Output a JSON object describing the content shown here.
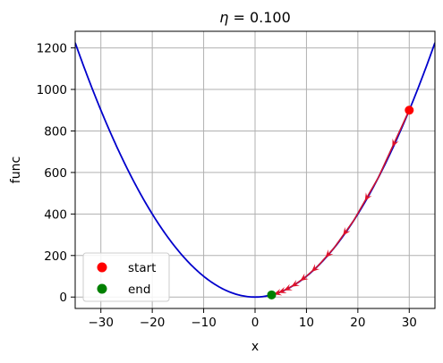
{
  "chart_data": {
    "type": "line",
    "title_prefix": "η",
    "title_value": " = 0.100",
    "xlabel": "x",
    "ylabel": "func",
    "xlim": [
      -35,
      35
    ],
    "ylim": [
      -55,
      1280
    ],
    "xticks": [
      -30,
      -20,
      -10,
      0,
      10,
      20,
      30
    ],
    "yticks": [
      0,
      200,
      400,
      600,
      800,
      1000,
      1200
    ],
    "grid": true,
    "legend_position": "lower-left",
    "curve": {
      "function": "x^2",
      "x_min": -35,
      "x_max": 35,
      "color": "#0000cc"
    },
    "descent_path": {
      "color": "#e0102a",
      "path_color": "#7a1850",
      "x": [
        30,
        24,
        19.2,
        15.36,
        12.288,
        9.8304,
        7.8643,
        6.2915,
        5.0332,
        4.0265,
        3.2212
      ],
      "y": [
        900,
        576,
        368.64,
        235.93,
        151,
        96.64,
        61.85,
        39.58,
        25.33,
        16.21,
        10.38
      ]
    },
    "start_point": {
      "x": 30,
      "y": 900,
      "color": "#ff0000"
    },
    "end_point": {
      "x": 3.2212,
      "y": 10.38,
      "color": "#008000"
    },
    "legend": [
      {
        "label": "start",
        "color": "#ff0000"
      },
      {
        "label": "end",
        "color": "#008000"
      }
    ]
  }
}
